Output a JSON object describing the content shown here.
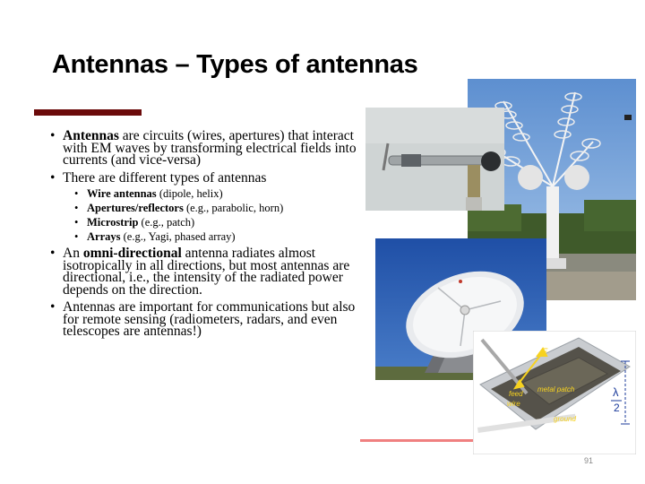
{
  "slide": {
    "title": "Antennas – Types of antennas",
    "page_number": "91",
    "colors": {
      "title_bar": "#6b0a0a",
      "accent_line": "#f08080"
    }
  },
  "bullets": [
    {
      "bold": "Antennas",
      "text": " are circuits (wires, apertures) that interact with EM waves by transforming electrical fields into currents (and vice-versa)"
    },
    {
      "bold": "",
      "text": "There are different types of antennas"
    }
  ],
  "sub_bullets": [
    {
      "bold": "Wire antennas",
      "text": " (dipole, helix)"
    },
    {
      "bold": "Apertures/reflectors",
      "text": " (e.g., parabolic, horn)"
    },
    {
      "bold": "Microstrip",
      "text": " (e.g., patch)"
    },
    {
      "bold": "Arrays",
      "text": " (e.g., Yagi, phased array)"
    }
  ],
  "bullets2": [
    {
      "pre": "An ",
      "bold": "omni-directional",
      "text": " antenna radiates almost isotropically in all directions, but most antennas are directional, i.e., the intensity of the radiated power depends on the direction."
    },
    {
      "pre": "",
      "bold": "",
      "text": "Antennas are important for communications but also for remote sensing (radiometers, radars, and even telescopes are antennas!)"
    }
  ],
  "patch_figure": {
    "label_e": "E",
    "label_metal_patch": "metal patch",
    "label_feed": "feed",
    "label_wire": "wire",
    "label_ground": "ground",
    "label_lambda": "λ",
    "label_two": "2"
  }
}
